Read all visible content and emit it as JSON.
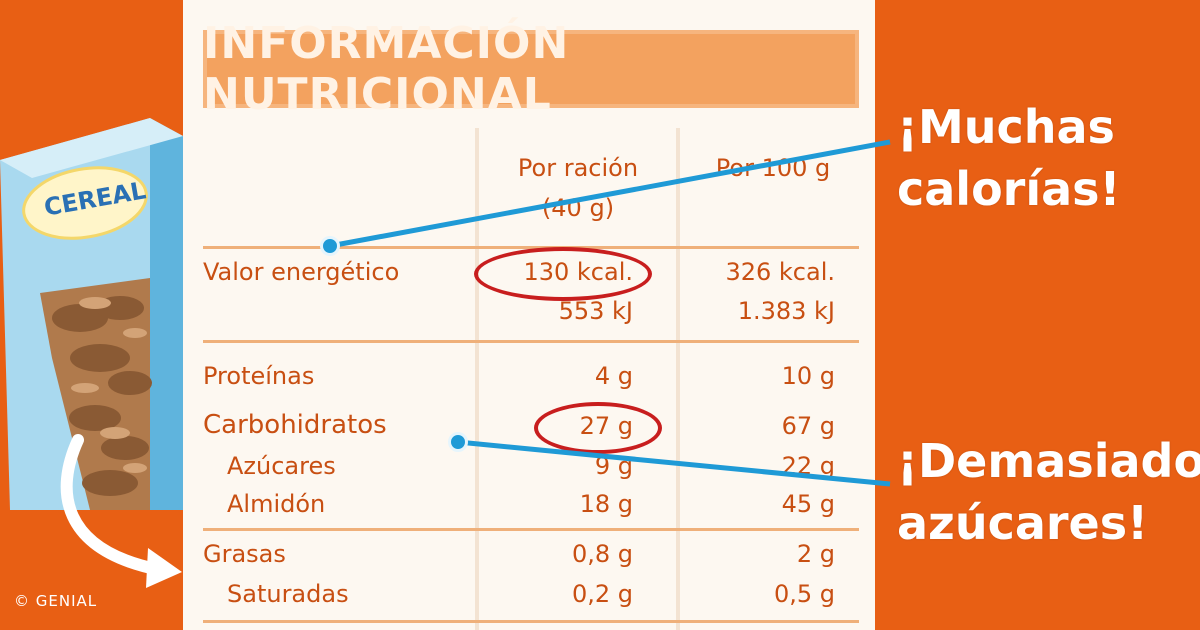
{
  "label": {
    "title": "INFORMACIÓN NUTRICIONAL",
    "headers": {
      "per_serving": "Por ración",
      "per_serving_weight": "(40 g)",
      "per_100": "Por 100 g"
    },
    "rows": [
      {
        "name": "Valor energético",
        "serving": "130 kcal.",
        "per100": "326 kcal."
      },
      {
        "name": "",
        "serving": "553 kJ",
        "per100": "1.383 kJ"
      },
      {
        "name": "Proteínas",
        "serving": "4 g",
        "per100": "10 g"
      },
      {
        "name": "Carbohidratos",
        "serving": "27 g",
        "per100": "67 g"
      },
      {
        "name": "Azúcares",
        "serving": "9 g",
        "per100": "22 g"
      },
      {
        "name": "Almidón",
        "serving": "18 g",
        "per100": "45 g"
      },
      {
        "name": "Grasas",
        "serving": "0,8 g",
        "per100": "2 g"
      },
      {
        "name": "Saturadas",
        "serving": "0,2 g",
        "per100": "0,5 g"
      }
    ]
  },
  "callouts": {
    "calories_line1": "¡Muchas",
    "calories_line2": "calorías!",
    "sugars_line1": "¡Demasiados",
    "sugars_line2": "azúcares!"
  },
  "box": {
    "brand": "CEREAL"
  },
  "credit": "© GENIAL",
  "colors": {
    "background": "#e85f14",
    "label_text": "#c84f12",
    "highlight_circle": "#c81e1e",
    "callout_line": "#1f9ad6"
  }
}
